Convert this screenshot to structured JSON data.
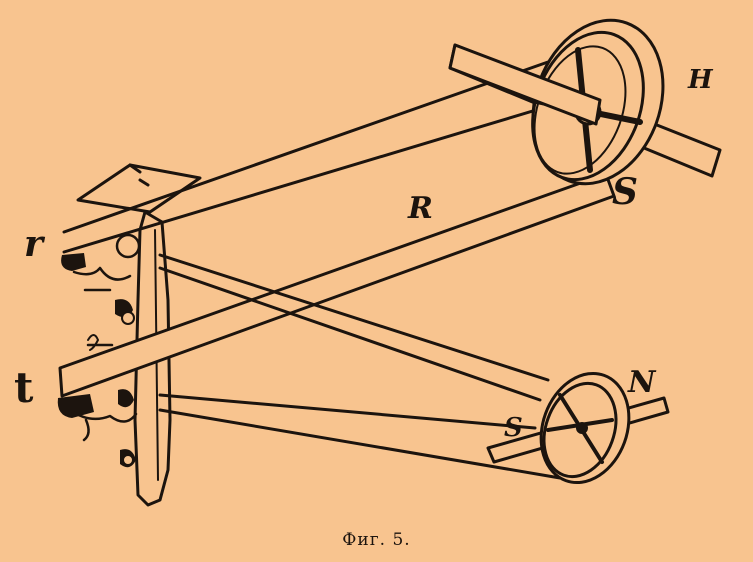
{
  "labels": {
    "H": "H",
    "R": "R",
    "S_upper": "S",
    "N": "N",
    "S_lower": "S",
    "r": "r",
    "t": "t"
  },
  "caption": "Фиг. 5.",
  "colors": {
    "paper": "#f8c48f",
    "ink": "#1c140e"
  }
}
